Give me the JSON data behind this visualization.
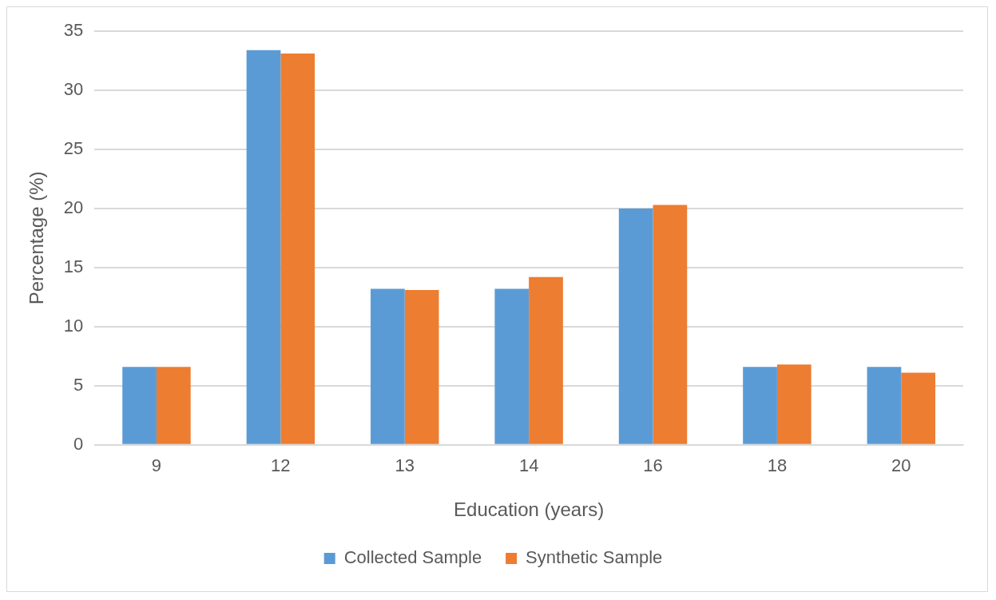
{
  "chart_data": {
    "type": "bar",
    "xlabel": "Education (years)",
    "ylabel": "Percentage (%)",
    "categories": [
      "9",
      "12",
      "13",
      "14",
      "16",
      "18",
      "20"
    ],
    "series": [
      {
        "name": "Collected Sample",
        "color": "#5b9bd5",
        "values": [
          6.6,
          33.4,
          13.2,
          13.2,
          20.0,
          6.6,
          6.6
        ]
      },
      {
        "name": "Synthetic Sample",
        "color": "#ed7d31",
        "values": [
          6.6,
          33.1,
          13.1,
          14.2,
          20.3,
          6.8,
          6.1
        ]
      }
    ],
    "ylim": [
      0,
      35
    ],
    "yticks": [
      0,
      5,
      10,
      15,
      20,
      25,
      30,
      35
    ],
    "grid": "y",
    "legend": "bottom"
  }
}
